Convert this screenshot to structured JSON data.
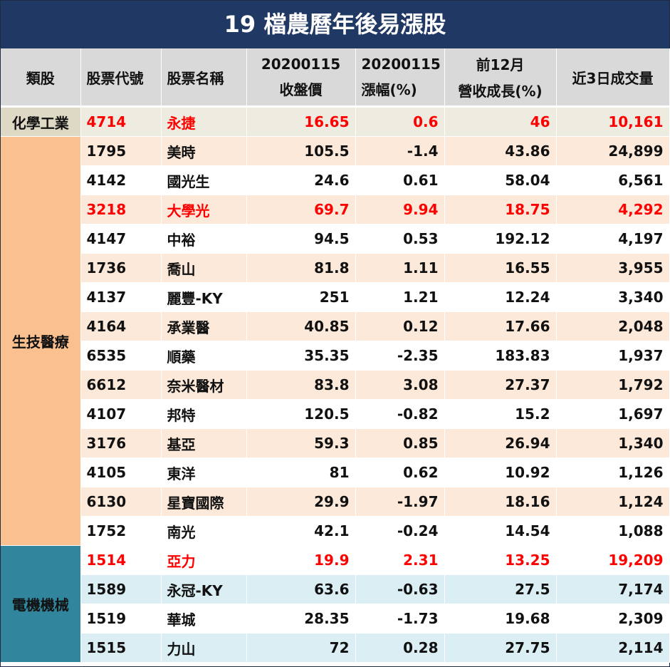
{
  "title": "19 檔農曆年後易漲股",
  "headers": {
    "category": "類股",
    "code": "股票代號",
    "name": "股票名稱",
    "close_date": "20200115",
    "close_label": "收盤價",
    "change_date": "20200115",
    "change_label": "漲幅(%)",
    "rev_line1": "前12月",
    "rev_line2": "營收成長(%)",
    "volume": "近3日成交量"
  },
  "categories": [
    {
      "name": "化學工業"
    },
    {
      "name": "生技醫療"
    },
    {
      "name": "電機機械"
    }
  ],
  "rows": [
    {
      "code": "4714",
      "name": "永捷",
      "close": "16.65",
      "change": "0.6",
      "rev": "46",
      "volume": "10,161",
      "highlight": true
    },
    {
      "code": "1795",
      "name": "美時",
      "close": "105.5",
      "change": "-1.4",
      "rev": "43.86",
      "volume": "24,899",
      "highlight": false
    },
    {
      "code": "4142",
      "name": "國光生",
      "close": "24.6",
      "change": "0.61",
      "rev": "58.04",
      "volume": "6,561",
      "highlight": false
    },
    {
      "code": "3218",
      "name": "大學光",
      "close": "69.7",
      "change": "9.94",
      "rev": "18.75",
      "volume": "4,292",
      "highlight": true
    },
    {
      "code": "4147",
      "name": "中裕",
      "close": "94.5",
      "change": "0.53",
      "rev": "192.12",
      "volume": "4,197",
      "highlight": false
    },
    {
      "code": "1736",
      "name": "喬山",
      "close": "81.8",
      "change": "1.11",
      "rev": "16.55",
      "volume": "3,955",
      "highlight": false
    },
    {
      "code": "4137",
      "name": "麗豐-KY",
      "close": "251",
      "change": "1.21",
      "rev": "12.24",
      "volume": "3,340",
      "highlight": false
    },
    {
      "code": "4164",
      "name": "承業醫",
      "close": "40.85",
      "change": "0.12",
      "rev": "17.66",
      "volume": "2,048",
      "highlight": false
    },
    {
      "code": "6535",
      "name": "順藥",
      "close": "35.35",
      "change": "-2.35",
      "rev": "183.83",
      "volume": "1,937",
      "highlight": false
    },
    {
      "code": "6612",
      "name": "奈米醫材",
      "close": "83.8",
      "change": "3.08",
      "rev": "27.37",
      "volume": "1,792",
      "highlight": false
    },
    {
      "code": "4107",
      "name": "邦特",
      "close": "120.5",
      "change": "-0.82",
      "rev": "15.2",
      "volume": "1,697",
      "highlight": false
    },
    {
      "code": "3176",
      "name": "基亞",
      "close": "59.3",
      "change": "0.85",
      "rev": "26.94",
      "volume": "1,340",
      "highlight": false
    },
    {
      "code": "4105",
      "name": "東洋",
      "close": "81",
      "change": "0.62",
      "rev": "10.92",
      "volume": "1,126",
      "highlight": false
    },
    {
      "code": "6130",
      "name": "星寶國際",
      "close": "29.9",
      "change": "-1.97",
      "rev": "18.16",
      "volume": "1,124",
      "highlight": false
    },
    {
      "code": "1752",
      "name": "南光",
      "close": "42.1",
      "change": "-0.24",
      "rev": "14.54",
      "volume": "1,088",
      "highlight": false
    },
    {
      "code": "1514",
      "name": "亞力",
      "close": "19.9",
      "change": "2.31",
      "rev": "13.25",
      "volume": "19,209",
      "highlight": true
    },
    {
      "code": "1589",
      "name": "永冠-KY",
      "close": "63.6",
      "change": "-0.63",
      "rev": "27.5",
      "volume": "7,174",
      "highlight": false
    },
    {
      "code": "1519",
      "name": "華城",
      "close": "28.35",
      "change": "-1.73",
      "rev": "19.68",
      "volume": "2,309",
      "highlight": false
    },
    {
      "code": "1515",
      "name": "力山",
      "close": "72",
      "change": "0.28",
      "rev": "27.75",
      "volume": "2,114",
      "highlight": false
    }
  ],
  "colors": {
    "title_bg": "#203864",
    "header_bg": "#d9d9d9",
    "highlight_text": "#ff0000",
    "chem_bg": "#ddd9c4",
    "bio_bg": "#fac090",
    "bio_alt_bg": "#fde9d9",
    "elec_bg": "#31859c",
    "elec_alt_bg": "#dbeef3"
  }
}
